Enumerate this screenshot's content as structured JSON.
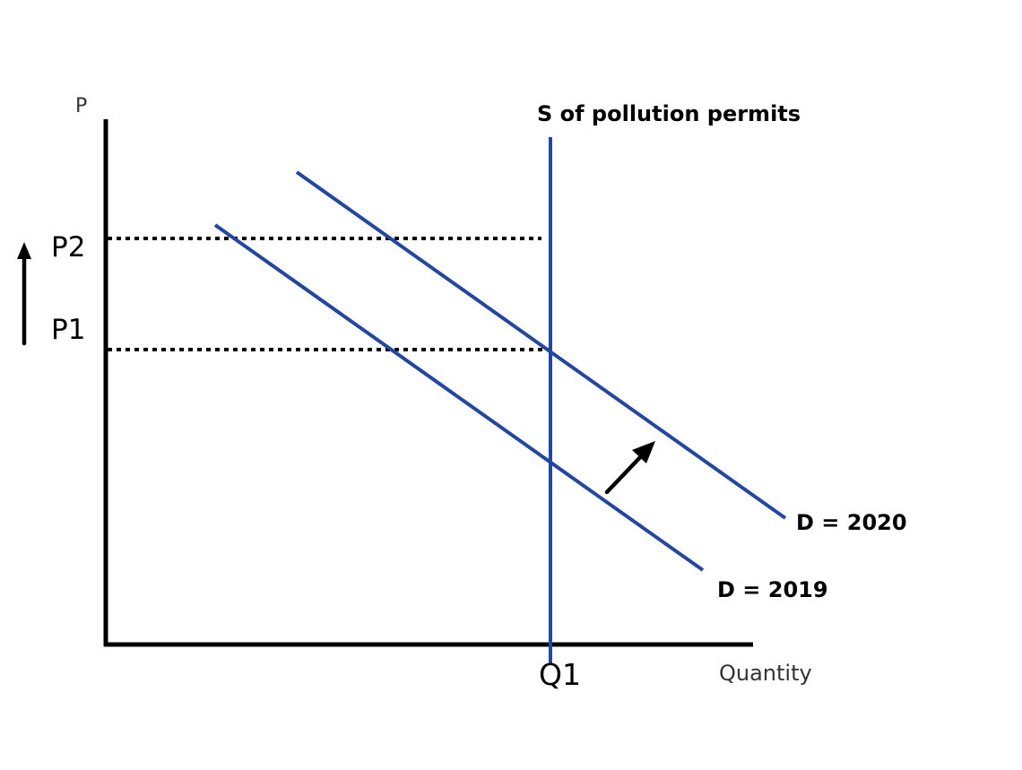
{
  "colors": {
    "curve": "#2346a3",
    "axis": "#000000",
    "text": "#000000"
  },
  "labels": {
    "y_axis": "P",
    "x_axis": "Quantity",
    "supply": "S of pollution permits",
    "demand_2020": "D = 2020",
    "demand_2019": "D = 2019",
    "p1": "P1",
    "p2": "P2",
    "q1": "Q1"
  }
}
